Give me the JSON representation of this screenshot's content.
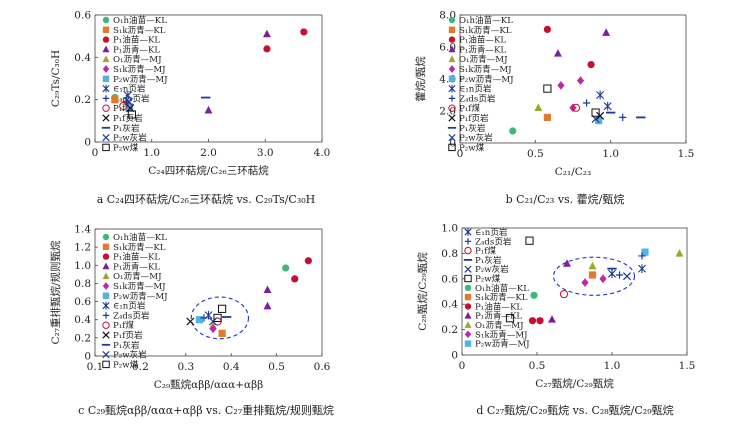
{
  "figure": {
    "panels": [
      "a",
      "b",
      "c",
      "d"
    ]
  },
  "legend_labels": {
    "O1h_kl": "O₁h油苗—KL",
    "S1k_kl": "S₁k沥青—KL",
    "P1_kl_oil": "P₁油苗—KL",
    "P1_kl_asph": "P₁沥青—KL",
    "O1_mj": "O₁沥青—MJ",
    "S1k_mj": "S₁k沥青—MJ",
    "P2w_mj": "P₂w沥青—MJ",
    "e1n": "∈₁n页岩",
    "z4ds": "Z₄ds页岩",
    "p1coal": "P₁f煤",
    "p1shale": "P₁f页岩",
    "p1lime": "P₁灰岩",
    "p2wlime": "P₂w灰岩",
    "p2wcoal": "P₂w煤"
  },
  "colors": {
    "green": "#3cb878",
    "orange": "#e07a2e",
    "red": "#c8102e",
    "purple": "#7b1fa2",
    "olive": "#9aa82b",
    "magenta": "#c026a8",
    "cyan": "#4fb3e3",
    "navy": "#1a3a9b",
    "black": "#111111",
    "ellipse": "#2233bb"
  },
  "chart_data": [
    {
      "id": "a",
      "type": "scatter",
      "title": "a C₂₄四环萜烷/C₂₆三环萜烷 vs. C₂₉Ts/C₃₀H",
      "xlabel": "C₂₄四环萜烷/C₂₆三环萜烷",
      "ylabel": "C₂₉Ts/C₃₀H",
      "xlim": [
        0,
        4.0
      ],
      "ylim": [
        0,
        0.6
      ],
      "xticks": [
        "0",
        "1.0",
        "2.0",
        "3.0",
        "4.0"
      ],
      "yticks": [
        "0",
        "0.2",
        "0.4",
        "0.6"
      ],
      "legend": [
        [
          "O1h_kl",
          "circle",
          "green"
        ],
        [
          "S1k_kl",
          "square",
          "orange"
        ],
        [
          "P1_kl_oil",
          "circle",
          "red"
        ],
        [
          "P1_kl_asph",
          "triangle",
          "purple"
        ],
        [
          "O1_mj",
          "triangle",
          "olive"
        ],
        [
          "S1k_mj",
          "diamond",
          "magenta"
        ],
        [
          "P2w_mj",
          "square",
          "cyan"
        ],
        [
          "e1n",
          "asterisk",
          "navy"
        ],
        [
          "z4ds",
          "plus",
          "navy"
        ],
        [
          "p1coal",
          "ocircle",
          "red"
        ],
        [
          "p1shale",
          "cross",
          "black"
        ],
        [
          "p1lime",
          "dash",
          "navy"
        ],
        [
          "p2wlime",
          "cross",
          "navy"
        ],
        [
          "p2wcoal",
          "osquare",
          "black"
        ]
      ],
      "points": [
        {
          "s": "O1h_kl",
          "x": 0.35,
          "y": 0.21
        },
        {
          "s": "S1k_kl",
          "x": 0.35,
          "y": 0.2
        },
        {
          "s": "P1_kl_oil",
          "x": 3.03,
          "y": 0.44
        },
        {
          "s": "P1_kl_oil",
          "x": 3.68,
          "y": 0.52
        },
        {
          "s": "P1_kl_asph",
          "x": 3.03,
          "y": 0.51
        },
        {
          "s": "P1_kl_asph",
          "x": 2.0,
          "y": 0.15
        },
        {
          "s": "O1_mj",
          "x": 0.55,
          "y": 0.19
        },
        {
          "s": "S1k_mj",
          "x": 0.58,
          "y": 0.18
        },
        {
          "s": "P2w_mj",
          "x": 0.6,
          "y": 0.16
        },
        {
          "s": "e1n",
          "x": 0.58,
          "y": 0.22
        },
        {
          "s": "z4ds",
          "x": 0.55,
          "y": 0.19
        },
        {
          "s": "p1coal",
          "x": 0.5,
          "y": 0.17
        },
        {
          "s": "p1shale",
          "x": 0.62,
          "y": 0.16
        },
        {
          "s": "p1lime",
          "x": 1.95,
          "y": 0.21
        },
        {
          "s": "p2wlime",
          "x": 0.6,
          "y": 0.19
        },
        {
          "s": "p2wcoal",
          "x": 0.65,
          "y": 0.13
        }
      ]
    },
    {
      "id": "b",
      "type": "scatter",
      "title": "b C₂₁/C₂₃ vs. 藿烷/甄烷",
      "xlabel": "C₂₁/C₂₃",
      "ylabel": "藿烷/甄烷",
      "xlim": [
        0,
        1.5
      ],
      "ylim": [
        0,
        8.0
      ],
      "xticks": [
        "0",
        "0.5",
        "1.0",
        "1.5"
      ],
      "yticks": [
        "0",
        "2.0",
        "4.0",
        "6.0",
        "8.0"
      ],
      "legend": [
        [
          "O1h_kl",
          "circle",
          "green"
        ],
        [
          "S1k_kl",
          "square",
          "orange"
        ],
        [
          "P1_kl_oil",
          "circle",
          "red"
        ],
        [
          "P1_kl_asph",
          "triangle",
          "purple"
        ],
        [
          "O1_mj",
          "triangle",
          "olive"
        ],
        [
          "S1k_mj",
          "diamond",
          "magenta"
        ],
        [
          "P2w_mj",
          "square",
          "cyan"
        ],
        [
          "e1n",
          "asterisk",
          "navy"
        ],
        [
          "z4ds",
          "plus",
          "navy"
        ],
        [
          "p1coal",
          "ocircle",
          "red"
        ],
        [
          "p1shale",
          "cross",
          "black"
        ],
        [
          "p1lime",
          "dash",
          "navy"
        ],
        [
          "p2wlime",
          "cross",
          "navy"
        ],
        [
          "p2wcoal",
          "osquare",
          "black"
        ]
      ],
      "points": [
        {
          "s": "O1h_kl",
          "x": 0.35,
          "y": 0.75
        },
        {
          "s": "S1k_kl",
          "x": 0.58,
          "y": 1.6
        },
        {
          "s": "P1_kl_oil",
          "x": 0.58,
          "y": 7.1
        },
        {
          "s": "P1_kl_oil",
          "x": 0.87,
          "y": 4.9
        },
        {
          "s": "P1_kl_asph",
          "x": 0.65,
          "y": 5.6
        },
        {
          "s": "P1_kl_asph",
          "x": 0.97,
          "y": 6.9
        },
        {
          "s": "O1_mj",
          "x": 0.52,
          "y": 2.2
        },
        {
          "s": "S1k_mj",
          "x": 0.75,
          "y": 2.2
        },
        {
          "s": "S1k_mj",
          "x": 0.67,
          "y": 3.6
        },
        {
          "s": "S1k_mj",
          "x": 0.8,
          "y": 3.9
        },
        {
          "s": "P2w_mj",
          "x": 0.92,
          "y": 1.4
        },
        {
          "s": "e1n",
          "x": 0.93,
          "y": 3.0
        },
        {
          "s": "e1n",
          "x": 0.98,
          "y": 2.3
        },
        {
          "s": "z4ds",
          "x": 0.84,
          "y": 2.5
        },
        {
          "s": "z4ds",
          "x": 1.08,
          "y": 1.6
        },
        {
          "s": "p1coal",
          "x": 0.77,
          "y": 2.2
        },
        {
          "s": "p1shale",
          "x": 0.93,
          "y": 1.7
        },
        {
          "s": "p1lime",
          "x": 1.0,
          "y": 1.9
        },
        {
          "s": "p1lime",
          "x": 1.2,
          "y": 1.6
        },
        {
          "s": "p2wlime",
          "x": 0.9,
          "y": 1.5
        },
        {
          "s": "p2wcoal",
          "x": 0.58,
          "y": 3.4
        },
        {
          "s": "p2wcoal",
          "x": 0.9,
          "y": 1.9
        }
      ]
    },
    {
      "id": "c",
      "type": "scatter",
      "title": "c C₂₉甄烷αββ/ααα+αββ vs. C₂₇重排甄烷/规则甄烷",
      "xlabel": "C₂₉甄烷αββ/ααα+αββ",
      "ylabel": "C₂₇重排甄烷/规则甄烷",
      "xlim": [
        0.1,
        0.6
      ],
      "ylim": [
        0,
        1.4
      ],
      "xticks": [
        "0.1",
        "0.2",
        "0.3",
        "0.4",
        "0.5",
        "0.6"
      ],
      "yticks": [
        "0",
        "0.2",
        "0.4",
        "0.6",
        "0.8",
        "1.0",
        "1.2",
        "1.4"
      ],
      "legend": [
        [
          "O1h_kl",
          "circle",
          "green"
        ],
        [
          "S1k_kl",
          "square",
          "orange"
        ],
        [
          "P1_kl_oil",
          "circle",
          "red"
        ],
        [
          "P1_kl_asph",
          "triangle",
          "purple"
        ],
        [
          "O1_mj",
          "triangle",
          "olive"
        ],
        [
          "S1k_mj",
          "diamond",
          "magenta"
        ],
        [
          "P2w_mj",
          "square",
          "cyan"
        ],
        [
          "e1n",
          "asterisk",
          "navy"
        ],
        [
          "z4ds",
          "plus",
          "navy"
        ],
        [
          "p1coal",
          "ocircle",
          "red"
        ],
        [
          "p1shale",
          "cross",
          "black"
        ],
        [
          "p1lime",
          "dash",
          "navy"
        ],
        [
          "p2wlime",
          "cross",
          "navy"
        ],
        [
          "p2wcoal",
          "osquare",
          "black"
        ]
      ],
      "ellipse": {
        "cx": 0.375,
        "cy": 0.42,
        "rx": 0.063,
        "ry": 0.23
      },
      "points": [
        {
          "s": "O1h_kl",
          "x": 0.52,
          "y": 0.97
        },
        {
          "s": "S1k_kl",
          "x": 0.38,
          "y": 0.25
        },
        {
          "s": "P1_kl_oil",
          "x": 0.57,
          "y": 1.05
        },
        {
          "s": "P1_kl_oil",
          "x": 0.54,
          "y": 0.85
        },
        {
          "s": "P1_kl_asph",
          "x": 0.48,
          "y": 0.73
        },
        {
          "s": "P1_kl_asph",
          "x": 0.48,
          "y": 0.55
        },
        {
          "s": "O1_mj",
          "x": 0.36,
          "y": 0.33
        },
        {
          "s": "S1k_mj",
          "x": 0.36,
          "y": 0.3
        },
        {
          "s": "P2w_mj",
          "x": 0.33,
          "y": 0.4
        },
        {
          "s": "e1n",
          "x": 0.35,
          "y": 0.45
        },
        {
          "s": "z4ds",
          "x": 0.34,
          "y": 0.42
        },
        {
          "s": "p1coal",
          "x": 0.37,
          "y": 0.38
        },
        {
          "s": "p1shale",
          "x": 0.31,
          "y": 0.38
        },
        {
          "s": "p1lime",
          "x": 0.39,
          "y": 0.43
        },
        {
          "s": "p2wlime",
          "x": 0.36,
          "y": 0.38
        },
        {
          "s": "p2wcoal",
          "x": 0.38,
          "y": 0.52
        },
        {
          "s": "p2wcoal",
          "x": 0.37,
          "y": 0.42
        }
      ]
    },
    {
      "id": "d",
      "type": "scatter",
      "title": "d C₂₇甄烷/C₂₉甄烷 vs. C₂₈甄烷/C₂₉甄烷",
      "xlabel": "C₂₇甄烷/C₂₉甄烷",
      "ylabel": "C₂₈甄烷/C₂₉甄烷",
      "xlim": [
        0,
        1.5
      ],
      "ylim": [
        0,
        1.0
      ],
      "xticks": [
        "0",
        "0.5",
        "1.0",
        "1.5"
      ],
      "yticks": [
        "0",
        "0.2",
        "0.4",
        "0.6",
        "0.8",
        "1.0"
      ],
      "legend": [
        [
          "e1n",
          "asterisk",
          "navy"
        ],
        [
          "z4ds",
          "plus",
          "navy"
        ],
        [
          "p1coal",
          "ocircle",
          "red"
        ],
        [
          "p1lime",
          "dash",
          "navy"
        ],
        [
          "p2wlime",
          "cross",
          "navy"
        ],
        [
          "p2wcoal",
          "osquare",
          "black"
        ],
        [
          "O1h_kl",
          "circle",
          "green"
        ],
        [
          "S1k_kl",
          "square",
          "orange"
        ],
        [
          "P1_kl_oil",
          "circle",
          "red"
        ],
        [
          "P1_kl_asph",
          "triangle",
          "purple"
        ],
        [
          "O1_mj",
          "triangle",
          "olive"
        ],
        [
          "S1k_mj",
          "diamond",
          "magenta"
        ],
        [
          "P2w_mj",
          "square",
          "cyan"
        ]
      ],
      "ellipse": {
        "cx": 0.88,
        "cy": 0.62,
        "rx": 0.27,
        "ry": 0.15
      },
      "points": [
        {
          "s": "O1h_kl",
          "x": 0.48,
          "y": 0.47
        },
        {
          "s": "S1k_kl",
          "x": 0.87,
          "y": 0.63
        },
        {
          "s": "P1_kl_oil",
          "x": 0.47,
          "y": 0.27
        },
        {
          "s": "P1_kl_oil",
          "x": 0.52,
          "y": 0.27
        },
        {
          "s": "P1_kl_asph",
          "x": 0.6,
          "y": 0.28
        },
        {
          "s": "P1_kl_asph",
          "x": 0.7,
          "y": 0.72
        },
        {
          "s": "O1_mj",
          "x": 0.87,
          "y": 0.7
        },
        {
          "s": "O1_mj",
          "x": 1.45,
          "y": 0.8
        },
        {
          "s": "S1k_mj",
          "x": 0.82,
          "y": 0.57
        },
        {
          "s": "S1k_mj",
          "x": 0.94,
          "y": 0.6
        },
        {
          "s": "P2w_mj",
          "x": 1.22,
          "y": 0.81
        },
        {
          "s": "e1n",
          "x": 1.2,
          "y": 0.68
        },
        {
          "s": "e1n",
          "x": 1.0,
          "y": 0.64
        },
        {
          "s": "z4ds",
          "x": 1.2,
          "y": 0.78
        },
        {
          "s": "z4ds",
          "x": 1.05,
          "y": 0.63
        },
        {
          "s": "p1coal",
          "x": 0.68,
          "y": 0.48
        },
        {
          "s": "p1lime",
          "x": 1.0,
          "y": 0.68
        },
        {
          "s": "p2wlime",
          "x": 1.1,
          "y": 0.62
        },
        {
          "s": "p2wcoal",
          "x": 0.32,
          "y": 0.29
        },
        {
          "s": "p2wcoal",
          "x": 0.45,
          "y": 0.9
        }
      ]
    }
  ]
}
